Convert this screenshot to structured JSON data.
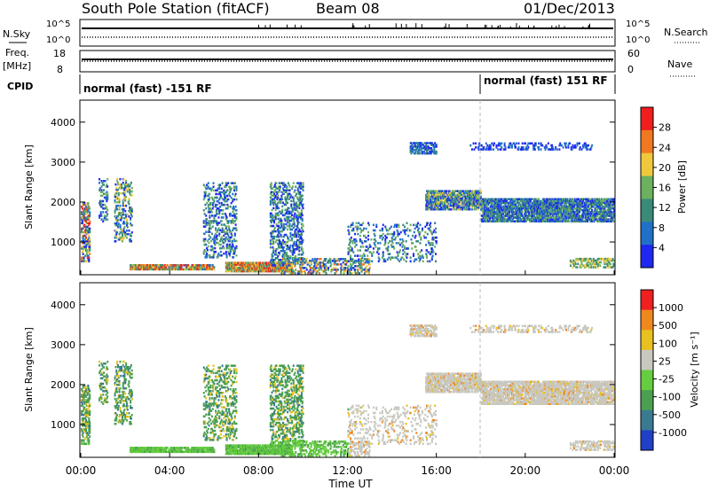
{
  "header": {
    "station": "South Pole Station (fitACF)",
    "beam": "Beam 08",
    "date": "01/Dec/2013"
  },
  "panels": {
    "nsky_label": "N.Sky",
    "nsky_ticks": [
      "10^5",
      "10^0"
    ],
    "nsearch_label": "N.Search",
    "freq_label": "Freq.",
    "freq_unit": "[MHz]",
    "freq_ticks": [
      "18",
      "8"
    ],
    "nave_label": "Nave",
    "nave_ticks": [
      "60",
      "0"
    ],
    "cpid_label": "CPID",
    "cpid_1": "normal (fast) -151 RF",
    "cpid_2": "normal (fast) 151 RF"
  },
  "chart_data": [
    {
      "type": "heatmap",
      "ylabel": "Slant Range [km]",
      "colorbar_label": "Power [dB]",
      "colorbar_ticks": [
        "28",
        "24",
        "20",
        "16",
        "12",
        "8",
        "4"
      ],
      "colors": [
        "#1e28f0",
        "#2070c8",
        "#3a8a78",
        "#6cb060",
        "#f0c83c",
        "#f07820",
        "#f01e1e"
      ],
      "y_ticks": [
        "4000",
        "3000",
        "2000",
        "1000"
      ],
      "ylim": [
        180,
        4550
      ]
    },
    {
      "type": "heatmap",
      "ylabel": "Slant Range [km]",
      "xlabel": "Time UT",
      "colorbar_label": "Velocity [m s⁻¹]",
      "colorbar_ticks": [
        "1000",
        "500",
        "100",
        "25",
        "-25",
        "-100",
        "-500",
        "-1000"
      ],
      "colors": [
        "#2040c8",
        "#3a7a90",
        "#4aa050",
        "#66cc40",
        "#c8c8c0",
        "#e8c020",
        "#f08820",
        "#f02020"
      ],
      "y_ticks": [
        "4000",
        "3000",
        "2000",
        "1000"
      ],
      "x_ticks": [
        "00:00",
        "04:00",
        "08:00",
        "12:00",
        "16:00",
        "20:00",
        "00:00"
      ],
      "ylim": [
        180,
        4550
      ],
      "xlim_hours": [
        0,
        24
      ]
    }
  ]
}
